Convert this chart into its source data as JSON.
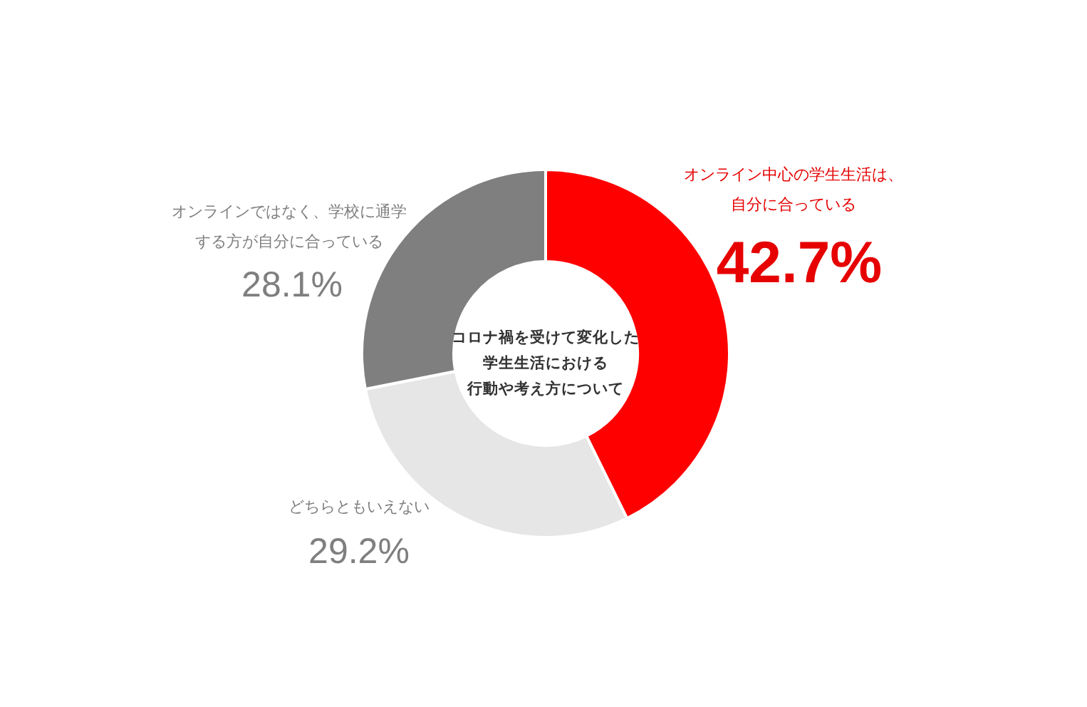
{
  "chart_data": {
    "type": "donut",
    "title": "コロナ禍を受けて変化した学生生活における行動や考え方について",
    "categories": [
      "オンライン中心の学生生活は、自分に合っている",
      "どちらともいえない",
      "オンラインではなく、学校に通学する方が自分に合っている"
    ],
    "values": [
      42.7,
      29.2,
      28.1
    ],
    "colors": [
      "#ff0000",
      "#e6e6e6",
      "#7f7f7f"
    ],
    "value_labels": [
      "42.7%",
      "29.2%",
      "28.1%"
    ]
  }
}
